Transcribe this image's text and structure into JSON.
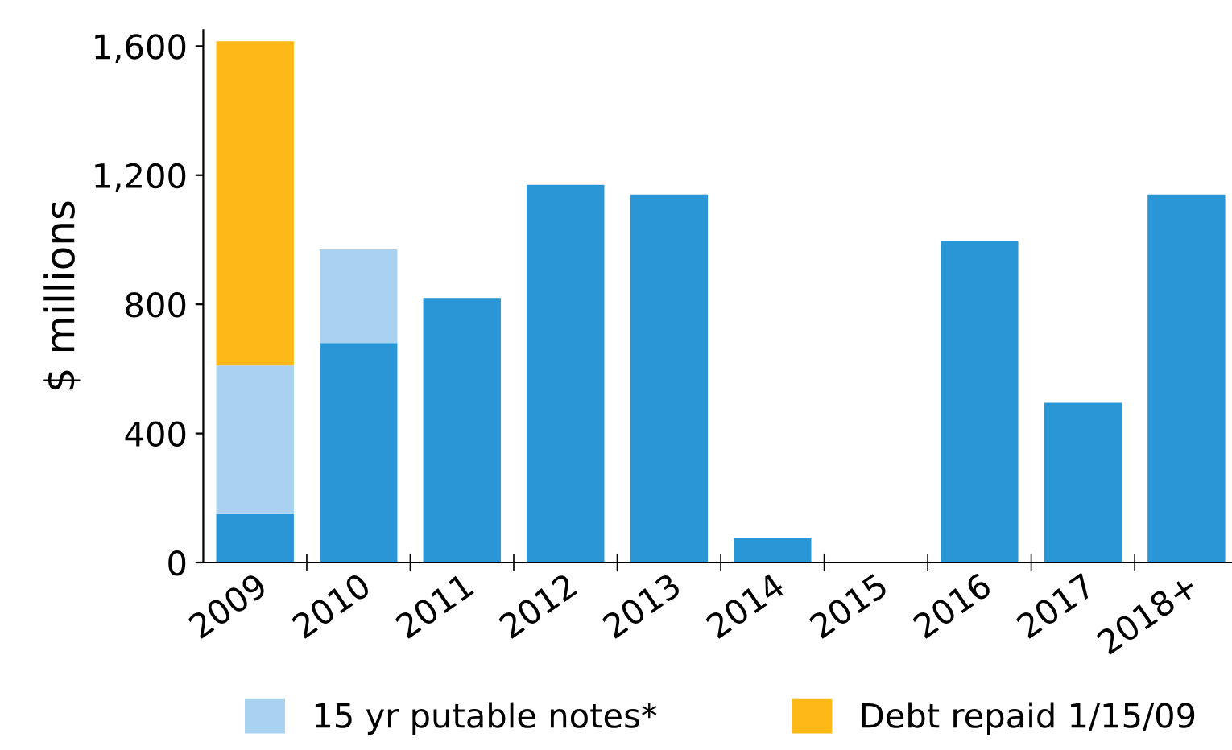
{
  "chart_data": {
    "type": "bar",
    "stacked": true,
    "ylabel": "$ millions",
    "categories": [
      "2009",
      "2010",
      "2011",
      "2012",
      "2013",
      "2014",
      "2015",
      "2016",
      "2017",
      "2018+"
    ],
    "series": [
      {
        "color": "#2a96d5",
        "values": [
          150,
          680,
          820,
          1170,
          1140,
          75,
          0,
          995,
          495,
          1140
        ]
      },
      {
        "name": "15 yr putable notes*",
        "color": "#a8d2ef",
        "values": [
          460,
          290,
          null,
          null,
          null,
          null,
          null,
          null,
          null,
          null
        ]
      },
      {
        "name": "Debt repaid 1/15/09",
        "color": "#fbb817",
        "values": [
          1005,
          null,
          null,
          null,
          null,
          null,
          null,
          null,
          null,
          null
        ]
      }
    ],
    "ylim": [
      0,
      1650
    ],
    "yticks": [
      0,
      400,
      800,
      {
        "value": 1200,
        "label": "1,200"
      },
      {
        "value": 1600,
        "label": "1,600"
      }
    ],
    "grid": false,
    "legend": "bottom"
  }
}
